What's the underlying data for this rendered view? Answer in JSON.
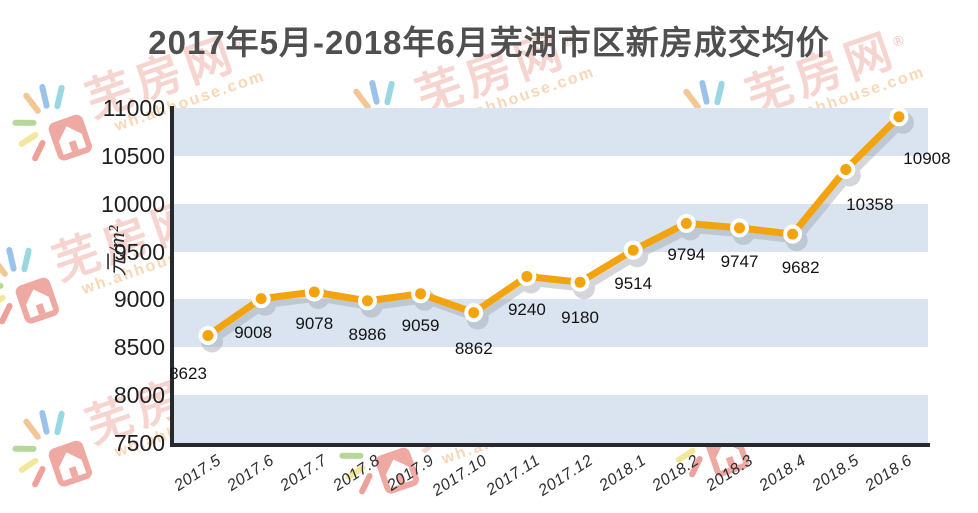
{
  "title": "2017年5月-2018年6月芜湖市区新房成交均价",
  "chart_data": {
    "type": "line",
    "title": "2017年5月-2018年6月芜湖市区新房成交均价",
    "x": [
      "2017.5",
      "2017.6",
      "2017.7",
      "2017.8",
      "2017.9",
      "2017.10",
      "2017.11",
      "2017.12",
      "2018.1",
      "2018.2",
      "2018.3",
      "2018.4",
      "2018.5",
      "2018.6"
    ],
    "values": [
      8623,
      9008,
      9078,
      8986,
      9059,
      8862,
      9240,
      9180,
      9514,
      9794,
      9747,
      9682,
      10358,
      10908
    ],
    "xlabel": "",
    "ylabel": "元/m²",
    "ylim": [
      7500,
      11000
    ],
    "y_ticks": [
      7500,
      8000,
      8500,
      9000,
      9500,
      10000,
      10500,
      11000
    ],
    "grid": "alternating-horizontal-bands",
    "legend": "none",
    "colors": {
      "line": "#F2A30D",
      "marker_fill": "#F2A30D",
      "marker_ring": "#FFFFFF",
      "shadow": "#98A2AB",
      "band": "#D9E4F0",
      "band_alt": "#FFFFFF",
      "axis": "#262A2E",
      "title_text": "#4F4F4F",
      "tick_text": "#1F1F1F",
      "label_text": "#141414"
    }
  },
  "watermark": {
    "brand": "芜房网",
    "registered": "®",
    "url": "wh.ahhouse.com"
  }
}
